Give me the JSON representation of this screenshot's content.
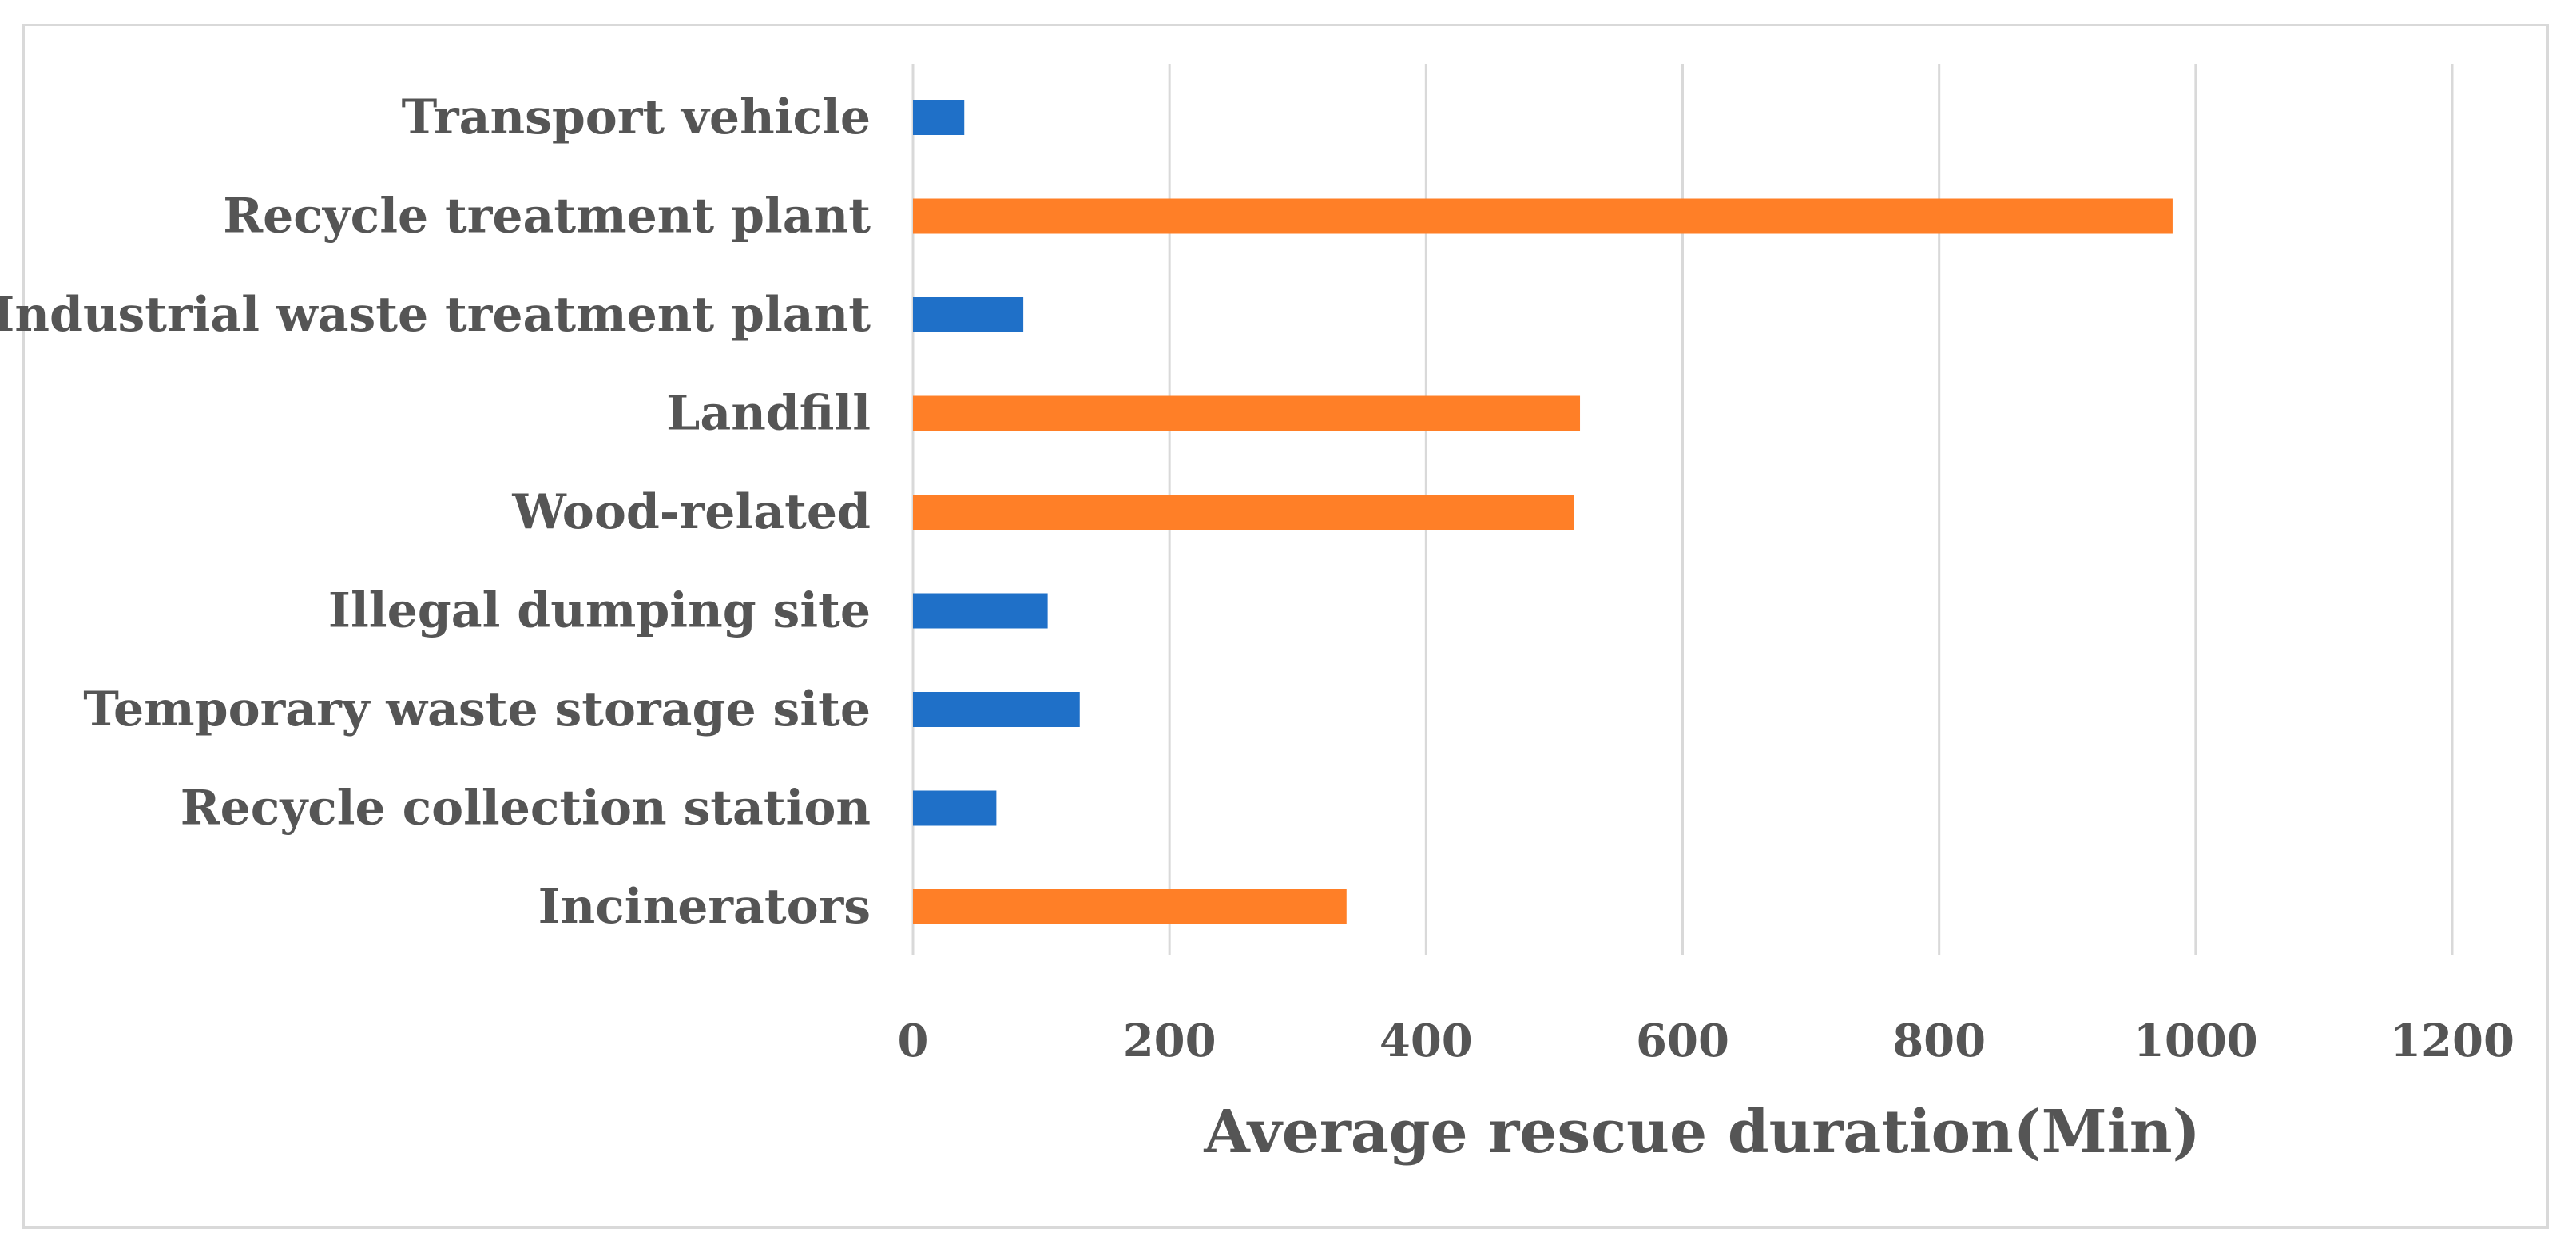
{
  "chart_data": {
    "type": "bar",
    "orientation": "horizontal",
    "title": "",
    "xlabel": "Average rescue duration(Min)",
    "ylabel": "",
    "xlim": [
      0,
      1200
    ],
    "xticks": [
      0,
      200,
      400,
      600,
      800,
      1000,
      1200
    ],
    "xtick_labels": [
      "0",
      "200",
      "400",
      "600",
      "800",
      "1000",
      "1200"
    ],
    "grid": true,
    "legend": "none",
    "categories": [
      "Transport vehicle",
      "Recycle treatment plant",
      "Industrial waste treatment plant",
      "Landfill",
      "Wood-related",
      "Illegal dumping site",
      "Temporary waste storage site",
      "Recycle collection station",
      "Incinerators"
    ],
    "values": [
      40,
      982,
      86,
      520,
      515,
      105,
      130,
      65,
      338
    ],
    "bar_colors": [
      "#1f70c8",
      "#ff7f27",
      "#1f70c8",
      "#ff7f27",
      "#ff7f27",
      "#1f70c8",
      "#1f70c8",
      "#1f70c8",
      "#ff7f27"
    ],
    "colors": {
      "blue": "#1f70c8",
      "orange": "#ff7f27",
      "text": "#555555",
      "grid": "#d9d9d9"
    }
  }
}
